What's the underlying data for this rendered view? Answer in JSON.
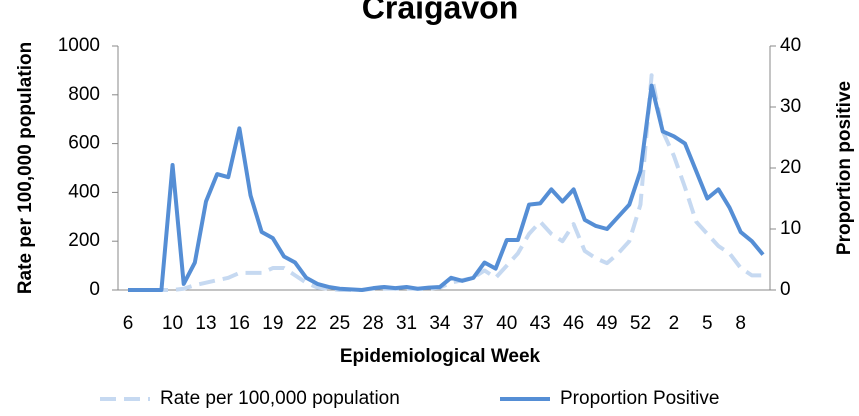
{
  "chart_data": {
    "type": "line",
    "title": "Craigavon",
    "x_label": "Epidemiological Week",
    "y_label": "Rate per 100,000 population",
    "y2_label": "Proportion positive",
    "categories": [
      "6",
      null,
      null,
      null,
      "10",
      null,
      null,
      "13",
      null,
      null,
      "16",
      null,
      null,
      "19",
      null,
      null,
      "22",
      null,
      null,
      "25",
      null,
      null,
      "28",
      null,
      null,
      "31",
      null,
      null,
      "34",
      null,
      null,
      "37",
      null,
      null,
      "40",
      null,
      null,
      "43",
      null,
      null,
      "46",
      null,
      null,
      "49",
      null,
      null,
      "52",
      null,
      null,
      "2",
      null,
      null,
      "5",
      null,
      null,
      "8",
      null,
      null
    ],
    "ylim": [
      0,
      1000
    ],
    "yticks": [
      0,
      200,
      400,
      600,
      800,
      1000
    ],
    "y2lim": [
      0,
      40
    ],
    "y2ticks": [
      0,
      10,
      20,
      30,
      40
    ],
    "legend": "bottom",
    "series": [
      {
        "name": "Rate per 100,000 population",
        "color": "#c6d9f1",
        "dashed": true,
        "values": [
          0,
          0,
          0,
          0,
          0,
          5,
          20,
          30,
          40,
          50,
          70,
          70,
          70,
          90,
          90,
          60,
          30,
          10,
          5,
          0,
          0,
          0,
          5,
          5,
          5,
          5,
          5,
          5,
          10,
          30,
          40,
          50,
          80,
          50,
          100,
          150,
          230,
          280,
          230,
          200,
          270,
          160,
          130,
          110,
          150,
          200,
          350,
          880,
          650,
          550,
          420,
          280,
          230,
          180,
          150,
          90,
          60,
          60
        ]
      },
      {
        "name": "Proportion Positive",
        "color": "#558ed5",
        "axis": "y2",
        "values": [
          0,
          0,
          0,
          0,
          20.5,
          1,
          4.5,
          14.5,
          19,
          18.5,
          26.5,
          15.5,
          9.5,
          8.5,
          5.5,
          4.5,
          2,
          1,
          0.5,
          0.2,
          0.1,
          0,
          0.3,
          0.5,
          0.3,
          0.5,
          0.2,
          0.4,
          0.5,
          2,
          1.5,
          2,
          4.5,
          3.5,
          8.2,
          8.2,
          14,
          14.2,
          16.5,
          14.5,
          16.5,
          11.5,
          10.5,
          10,
          12,
          14,
          19.5,
          33.5,
          26,
          25.2,
          24,
          19.5,
          15,
          16.5,
          13.5,
          9.5,
          8,
          5.8
        ]
      }
    ]
  }
}
